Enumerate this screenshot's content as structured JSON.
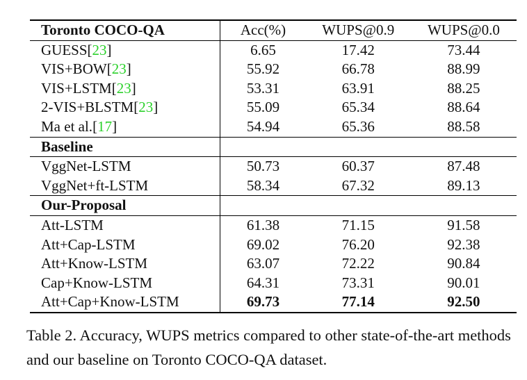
{
  "header": {
    "dataset": "Toronto COCO-QA",
    "acc": "Acc(%)",
    "wups09": "WUPS@0.9",
    "wups00": "WUPS@0.0"
  },
  "sota": [
    {
      "method": "GUESS",
      "ref": "23",
      "acc": "6.65",
      "wups09": "17.42",
      "wups00": "73.44"
    },
    {
      "method": "VIS+BOW",
      "ref": "23",
      "acc": "55.92",
      "wups09": "66.78",
      "wups00": "88.99"
    },
    {
      "method": "VIS+LSTM",
      "ref": "23",
      "acc": "53.31",
      "wups09": "63.91",
      "wups00": "88.25"
    },
    {
      "method": "2-VIS+BLSTM",
      "ref": "23",
      "acc": "55.09",
      "wups09": "65.34",
      "wups00": "88.64"
    },
    {
      "method": "Ma et al.",
      "ref": "17",
      "acc": "54.94",
      "wups09": "65.36",
      "wups00": "88.58"
    }
  ],
  "baseline_title": "Baseline",
  "baseline": [
    {
      "method": "VggNet-LSTM",
      "acc": "50.73",
      "wups09": "60.37",
      "wups00": "87.48"
    },
    {
      "method": "VggNet+ft-LSTM",
      "acc": "58.34",
      "wups09": "67.32",
      "wups00": "89.13"
    }
  ],
  "proposal_title": "Our-Proposal",
  "proposal": [
    {
      "method": "Att-LSTM",
      "acc": "61.38",
      "wups09": "71.15",
      "wups00": "91.58"
    },
    {
      "method": "Att+Cap-LSTM",
      "acc": "69.02",
      "wups09": "76.20",
      "wups00": "92.38"
    },
    {
      "method": "Att+Know-LSTM",
      "acc": "63.07",
      "wups09": "72.22",
      "wups00": "90.84"
    },
    {
      "method": "Cap+Know-LSTM",
      "acc": "64.31",
      "wups09": "73.31",
      "wups00": "90.01"
    },
    {
      "method": "Att+Cap+Know-LSTM",
      "acc": "69.73",
      "wups09": "77.14",
      "wups00": "92.50"
    }
  ],
  "caption": "Table 2. Accuracy, WUPS metrics compared to other state-of-the-art methods and our baseline on Toronto COCO-QA dataset."
}
